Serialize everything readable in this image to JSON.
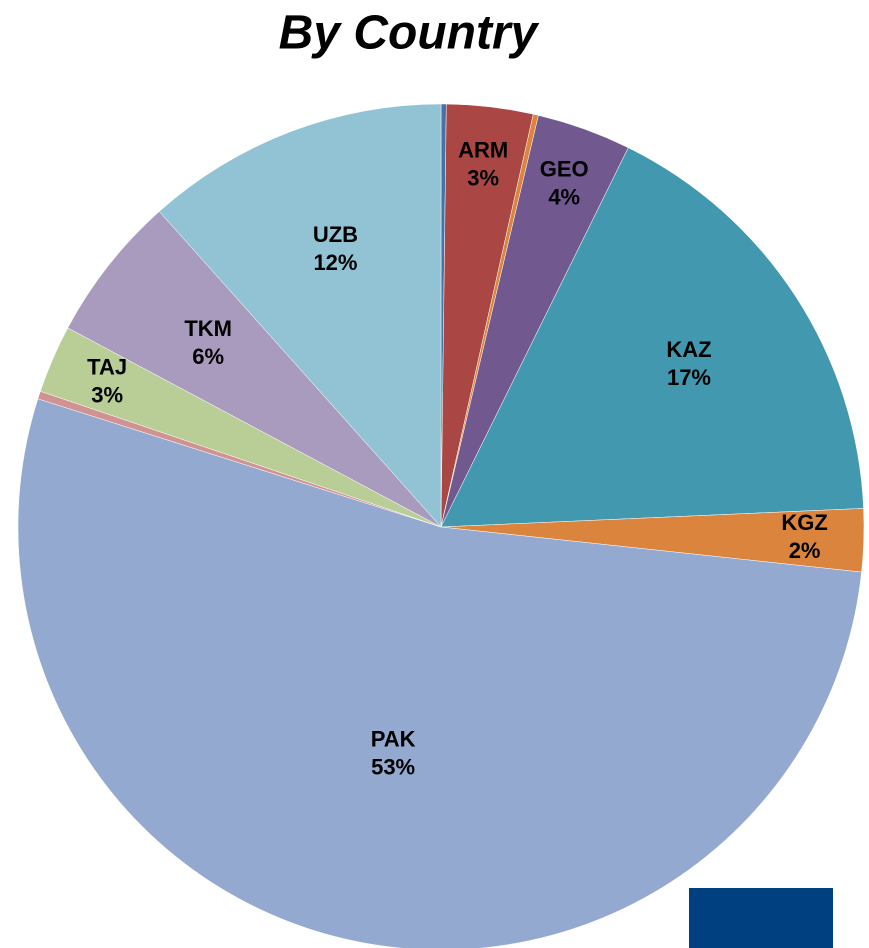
{
  "chart_data": {
    "type": "pie",
    "title": "By Country",
    "categories": [
      null,
      "ARM",
      null,
      "GEO",
      "KAZ",
      "KGZ",
      "PAK",
      null,
      "TAJ",
      "TKM",
      "UZB"
    ],
    "values": [
      0.2,
      3.3,
      0.2,
      3.6,
      17.0,
      2.4,
      53.2,
      0.3,
      2.6,
      5.6,
      11.6
    ],
    "value_labels": [
      null,
      "3%",
      null,
      "4%",
      "17%",
      "2%",
      "53%",
      null,
      "3%",
      "6%",
      "12%"
    ],
    "colors": [
      "#4572a7",
      "#aa4643",
      "#db843d",
      "#71588f",
      "#4198af",
      "#db843d",
      "#93a9cf",
      "#d19392",
      "#b9cd96",
      "#a99bbd",
      "#92c3d4"
    ]
  }
}
